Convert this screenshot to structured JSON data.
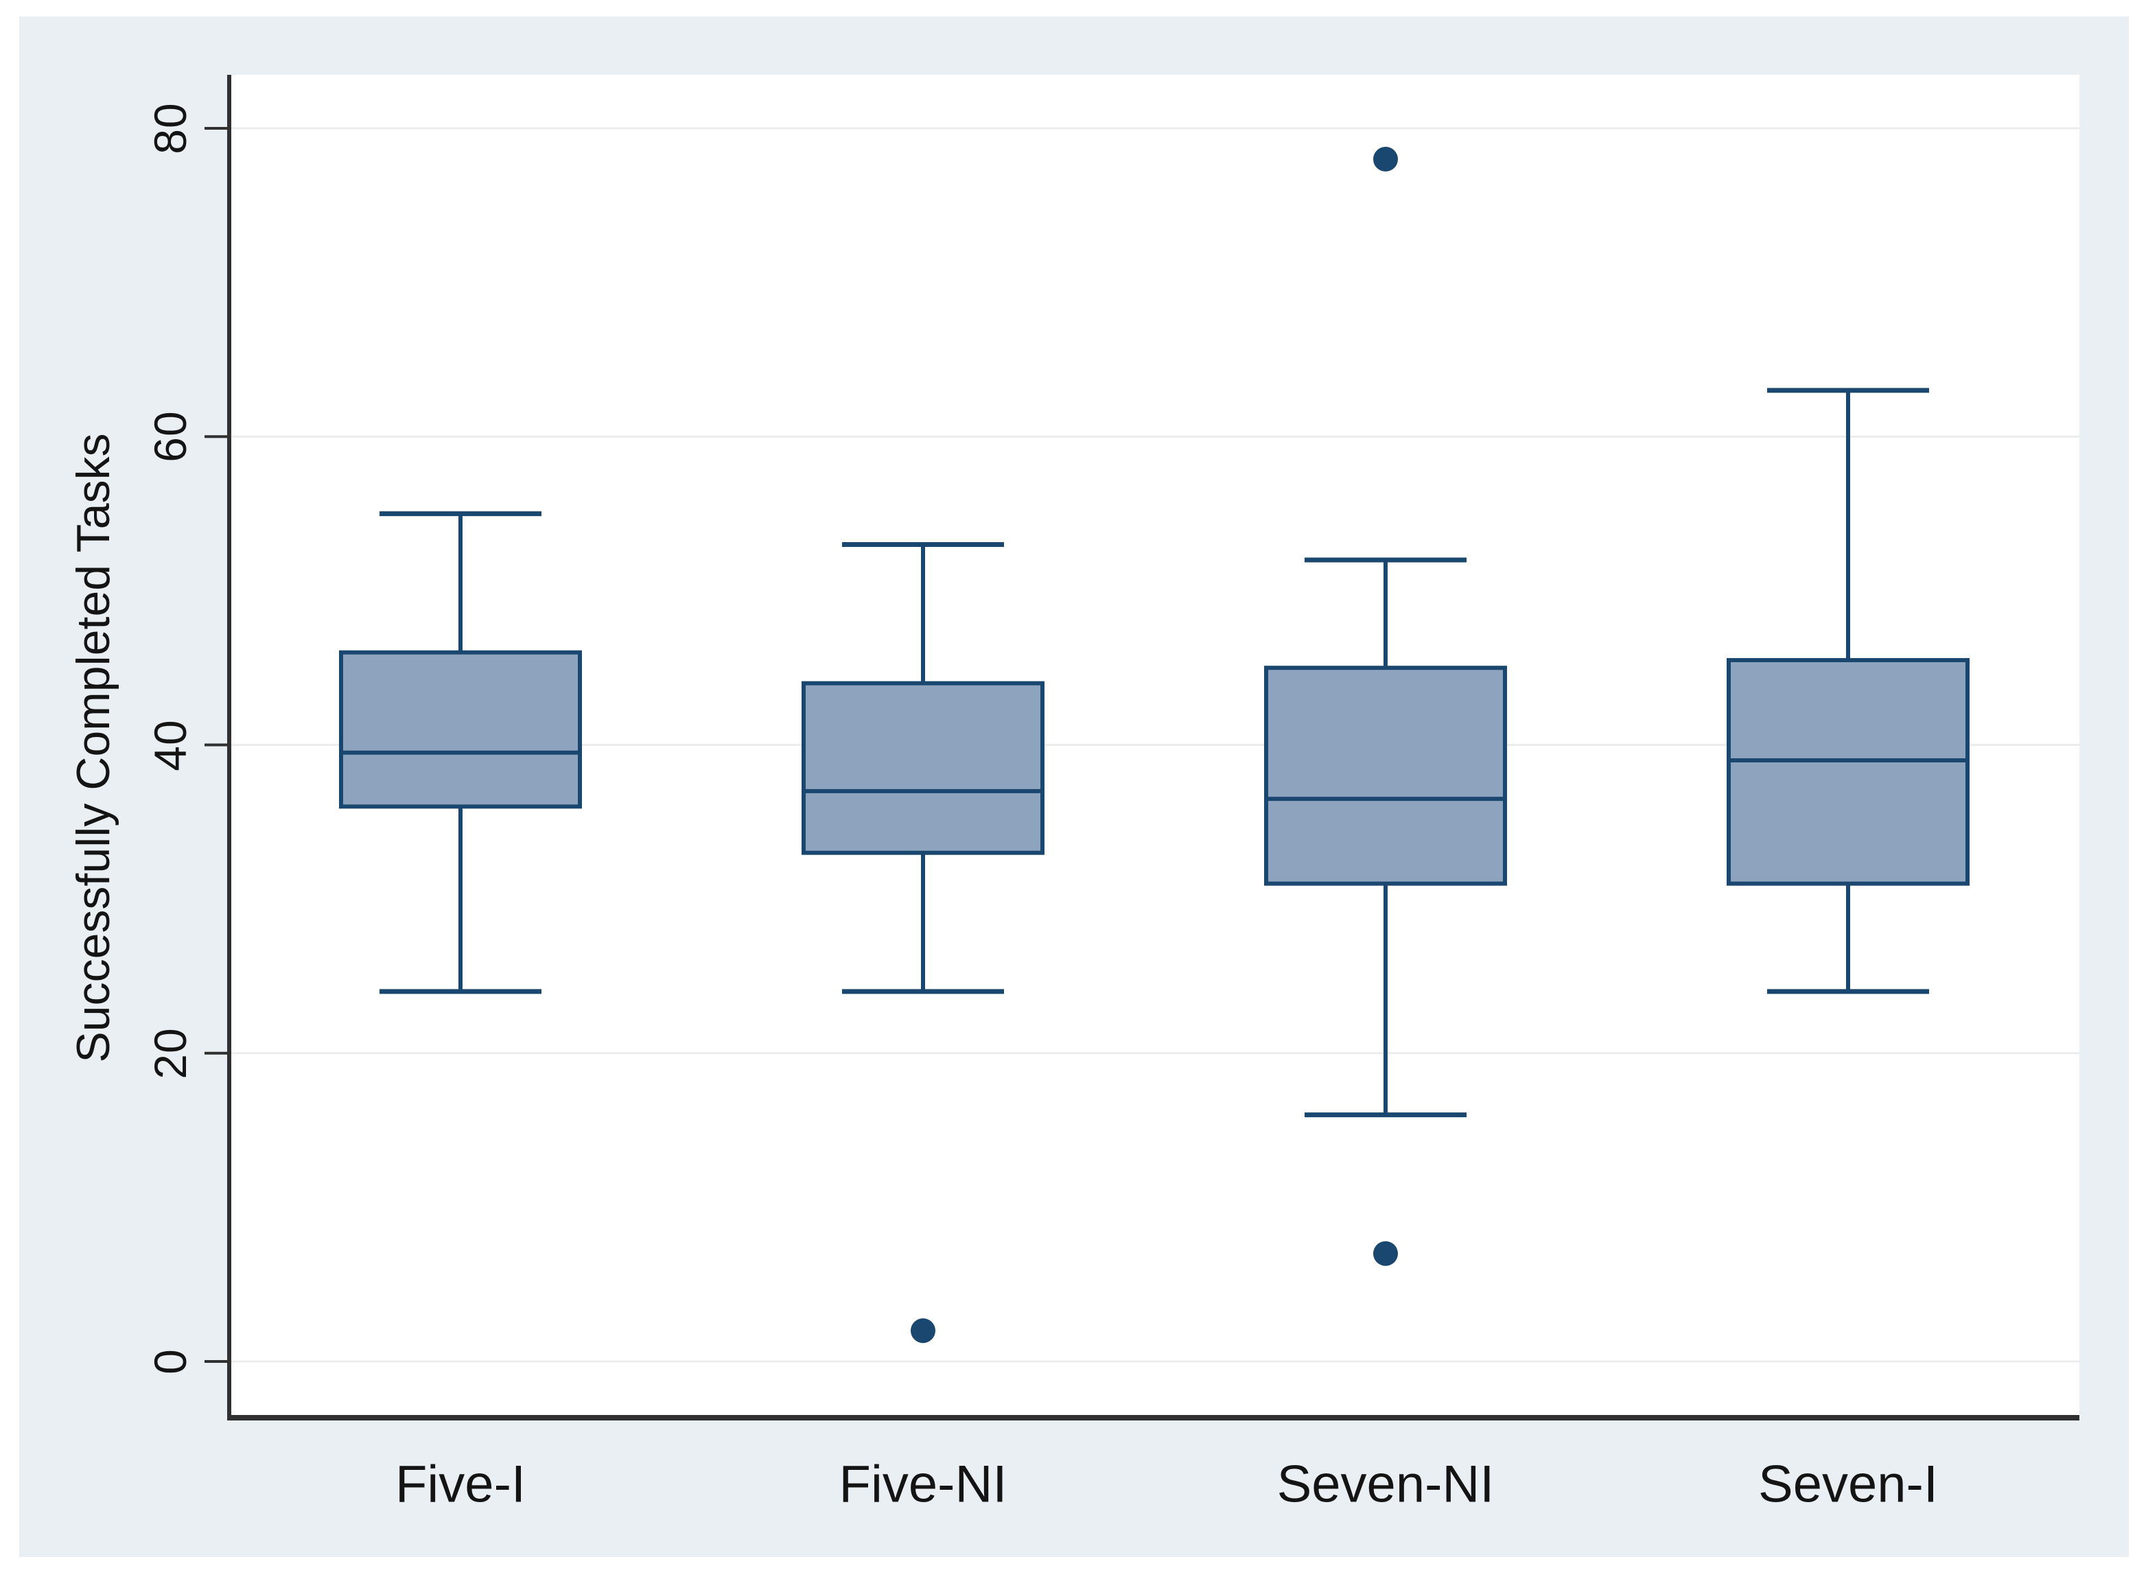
{
  "figure": {
    "ylabel": "Successfully Completed Tasks"
  },
  "chart_data": {
    "type": "boxplot",
    "title": "",
    "xlabel": "",
    "ylabel": "Successfully Completed Tasks",
    "categories": [
      "Five-I",
      "Five-NI",
      "Seven-NI",
      "Seven-I"
    ],
    "yticks": [
      0,
      20,
      40,
      60,
      80
    ],
    "ylim": [
      -3.7,
      83.5
    ],
    "grid": true,
    "legend": false,
    "boxes": [
      {
        "label": "Five-I",
        "whisker_low": 24,
        "q1": 36,
        "median": 39.5,
        "q3": 46,
        "whisker_high": 55,
        "outliers": []
      },
      {
        "label": "Five-NI",
        "whisker_low": 24,
        "q1": 33,
        "median": 37,
        "q3": 44,
        "whisker_high": 53,
        "outliers": [
          2
        ]
      },
      {
        "label": "Seven-NI",
        "whisker_low": 16,
        "q1": 31,
        "median": 36.5,
        "q3": 45,
        "whisker_high": 52,
        "outliers": [
          78,
          7
        ]
      },
      {
        "label": "Seven-I",
        "whisker_low": 24,
        "q1": 31,
        "median": 39,
        "q3": 45.5,
        "whisker_high": 63,
        "outliers": []
      }
    ],
    "colors": {
      "box_fill": "#8ea4be",
      "box_stroke": "#1a476f",
      "whisker": "#1a476f",
      "median": "#1a476f",
      "outlier_dot": "#1a476f",
      "axis": "#303030",
      "grid": "#ececec",
      "panel_bg": "#e9eff2",
      "plot_bg": "#ffffff",
      "text": "#141414"
    }
  }
}
